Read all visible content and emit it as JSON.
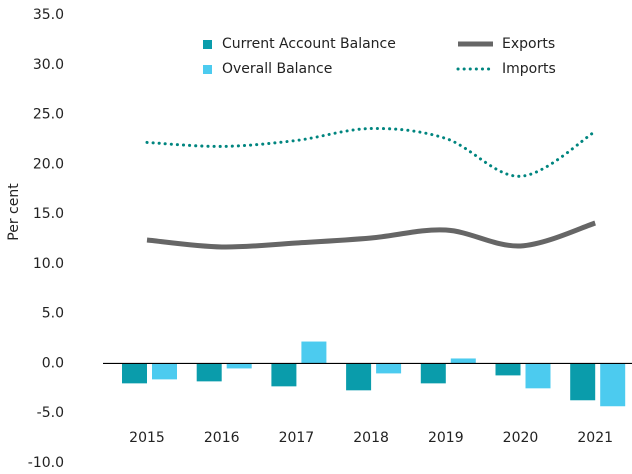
{
  "chart_data": {
    "type": "bar_line",
    "y_label": "Per cent",
    "categories": [
      "2015",
      "2016",
      "2017",
      "2018",
      "2019",
      "2020",
      "2021"
    ],
    "series": [
      {
        "name": "Current Account Balance",
        "type": "bar",
        "color": "#0a9cab",
        "values": [
          -2.0,
          -1.8,
          -2.3,
          -2.7,
          -2.0,
          -1.2,
          -3.7
        ]
      },
      {
        "name": "Overall Balance",
        "type": "bar",
        "color": "#4ccbef",
        "values": [
          -1.6,
          -0.5,
          2.2,
          -1.0,
          0.5,
          -2.5,
          -4.3
        ]
      },
      {
        "name": "Exports",
        "type": "line",
        "color": "#666666",
        "values": [
          12.4,
          11.7,
          12.1,
          12.6,
          13.4,
          11.8,
          14.1
        ]
      },
      {
        "name": "Imports",
        "type": "line",
        "dashed": true,
        "color": "#00857f",
        "values": [
          22.2,
          21.8,
          22.4,
          23.6,
          22.6,
          18.8,
          23.3
        ]
      }
    ],
    "ylim": [
      -10,
      35
    ],
    "yticks": [
      {
        "value": -10,
        "label": "-10.0"
      },
      {
        "value": -5,
        "label": "-5.0"
      },
      {
        "value": 0,
        "label": "0.0"
      },
      {
        "value": 5,
        "label": "5.0"
      },
      {
        "value": 10,
        "label": "10.0"
      },
      {
        "value": 15,
        "label": "15.0"
      },
      {
        "value": 20,
        "label": "20.0"
      },
      {
        "value": 25,
        "label": "25.0"
      },
      {
        "value": 30,
        "label": "30.0"
      },
      {
        "value": 35,
        "label": "35.0"
      }
    ],
    "legend": "top",
    "grid": false
  }
}
